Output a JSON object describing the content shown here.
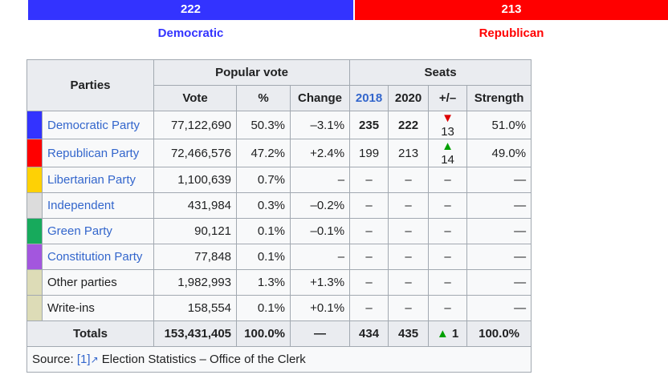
{
  "seat_bar": {
    "dem": {
      "seats": "222",
      "label": "Democratic",
      "color": "#3333ff"
    },
    "rep": {
      "seats": "213",
      "label": "Republican",
      "color": "#ff0000"
    }
  },
  "table": {
    "headers": {
      "parties": "Parties",
      "popular_vote": "Popular vote",
      "seats": "Seats",
      "vote": "Vote",
      "pct": "%",
      "change": "Change",
      "y2018": "2018",
      "y2020": "2020",
      "plusminus": "+/–",
      "strength": "Strength"
    },
    "rows": [
      {
        "color": "#3333ff",
        "party": "Democratic Party",
        "link": true,
        "vote": "77,122,690",
        "pct": "50.3%",
        "change": "–3.1%",
        "s2018": "235",
        "s2020": "222",
        "arrow": "▼",
        "arrow_dir": "down",
        "pm": "13",
        "strength": "51.0%",
        "bold_seats": true
      },
      {
        "color": "#ff0000",
        "party": "Republican Party",
        "link": true,
        "vote": "72,466,576",
        "pct": "47.2%",
        "change": "+2.4%",
        "s2018": "199",
        "s2020": "213",
        "arrow": "▲",
        "arrow_dir": "up",
        "pm": "14",
        "strength": "49.0%",
        "bold_seats": false
      },
      {
        "color": "#fed105",
        "party": "Libertarian Party",
        "link": true,
        "vote": "1,100,639",
        "pct": "0.7%",
        "change": "–",
        "s2018": "–",
        "s2020": "–",
        "arrow": "",
        "arrow_dir": "",
        "pm": "–",
        "strength": "—",
        "bold_seats": false
      },
      {
        "color": "#dcdcdc",
        "party": "Independent",
        "link": true,
        "vote": "431,984",
        "pct": "0.3%",
        "change": "–0.2%",
        "s2018": "–",
        "s2020": "–",
        "arrow": "",
        "arrow_dir": "",
        "pm": "–",
        "strength": "—",
        "bold_seats": false
      },
      {
        "color": "#17aa5c",
        "party": "Green Party",
        "link": true,
        "vote": "90,121",
        "pct": "0.1%",
        "change": "–0.1%",
        "s2018": "–",
        "s2020": "–",
        "arrow": "",
        "arrow_dir": "",
        "pm": "–",
        "strength": "—",
        "bold_seats": false
      },
      {
        "color": "#a356de",
        "party": "Constitution Party",
        "link": true,
        "vote": "77,848",
        "pct": "0.1%",
        "change": "–",
        "s2018": "–",
        "s2020": "–",
        "arrow": "",
        "arrow_dir": "",
        "pm": "–",
        "strength": "—",
        "bold_seats": false
      },
      {
        "color": "#dddcb7",
        "party": "Other parties",
        "link": false,
        "vote": "1,982,993",
        "pct": "1.3%",
        "change": "+1.3%",
        "s2018": "–",
        "s2020": "–",
        "arrow": "",
        "arrow_dir": "",
        "pm": "–",
        "strength": "—",
        "bold_seats": false
      },
      {
        "color": "#dddcb7",
        "party": "Write-ins",
        "link": false,
        "vote": "158,554",
        "pct": "0.1%",
        "change": "+0.1%",
        "s2018": "–",
        "s2020": "–",
        "arrow": "",
        "arrow_dir": "",
        "pm": "–",
        "strength": "—",
        "bold_seats": false
      }
    ],
    "totals": {
      "label": "Totals",
      "vote": "153,431,405",
      "pct": "100.0%",
      "change": "—",
      "s2018": "434",
      "s2020": "435",
      "arrow": "▲",
      "pm": "1",
      "strength": "100.0%"
    },
    "source": {
      "prefix": "Source:",
      "ref": "[1]",
      "ext_icon": "↗",
      "text": "Election Statistics – Office of the Clerk"
    }
  }
}
